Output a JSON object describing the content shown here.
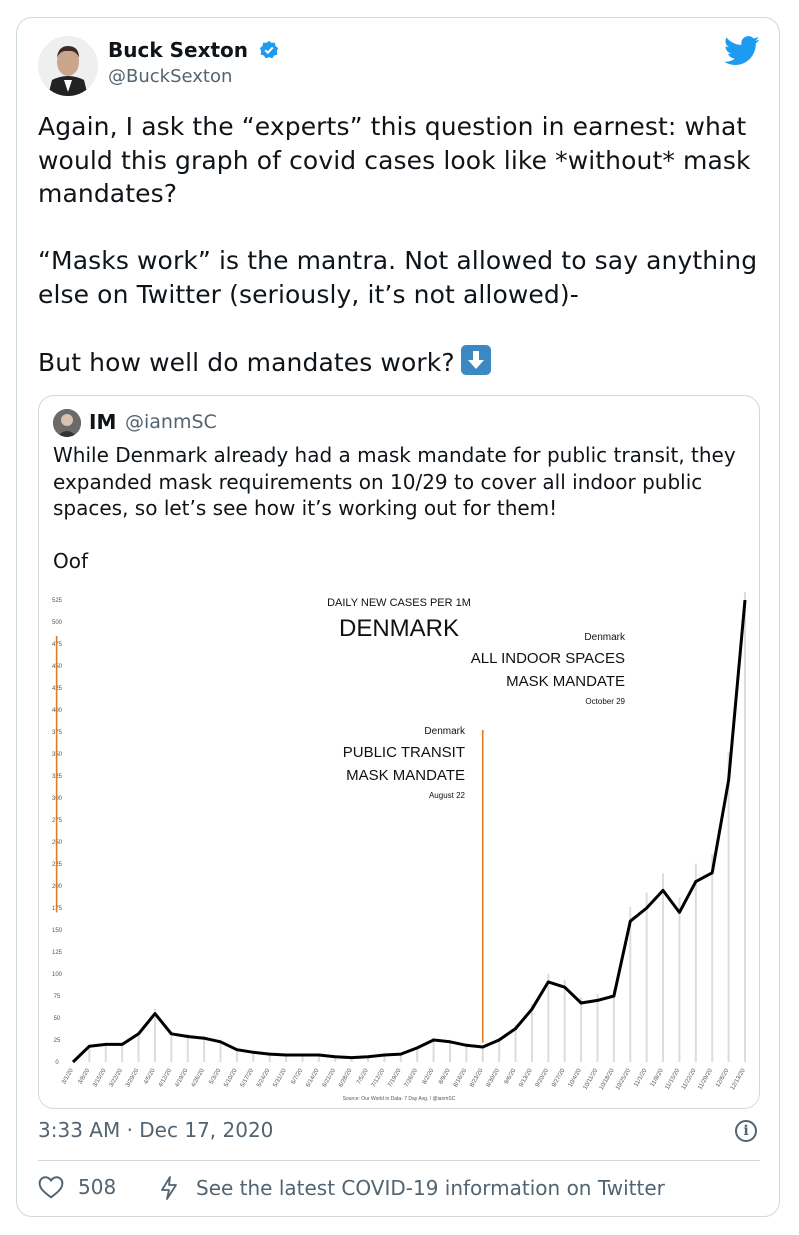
{
  "author": {
    "name": "Buck Sexton",
    "handle": "@BuckSexton",
    "verified_icon": "verified-badge-icon",
    "platform_icon": "twitter-bird-icon"
  },
  "tweet": {
    "text": "Again, I ask the “experts” this question in earnest: what would this graph of covid cases look like *without* mask mandates?\n\n“Masks work” is the mantra. Not allowed to say anything else on Twitter (seriously, it’s not allowed)-\n\nBut how well do mandates work?",
    "emoji": "down-arrow-emoji"
  },
  "quoted": {
    "name": "IM",
    "handle": "@ianmSC",
    "text": "While Denmark already had a mask mandate for public transit, they expanded mask requirements on 10/29 to cover all indoor public spaces, so let’s see how it’s working out for them!\n\nOof"
  },
  "chart_data": {
    "type": "line",
    "title": "DENMARK",
    "subtitle": "DAILY NEW CASES PER 1M",
    "source": "Source: Our World in Data- 7 Day Avg. / @ianmSC",
    "ylim": [
      0,
      525
    ],
    "yticks": [
      "0",
      "25",
      "50",
      "75",
      "100",
      "125",
      "150",
      "175",
      "200",
      "225",
      "250",
      "275",
      "300",
      "325",
      "350",
      "375",
      "400",
      "425",
      "450",
      "475",
      "500",
      "525"
    ],
    "categories": [
      "3/1/20",
      "3/8/20",
      "3/15/20",
      "3/22/20",
      "3/29/20",
      "4/5/20",
      "4/12/20",
      "4/19/20",
      "4/26/20",
      "5/3/20",
      "5/10/20",
      "5/17/20",
      "5/24/20",
      "5/31/20",
      "6/7/20",
      "6/14/20",
      "6/21/20",
      "6/28/20",
      "7/5/20",
      "7/12/20",
      "7/19/20",
      "7/26/20",
      "8/2/20",
      "8/9/20",
      "8/16/20",
      "8/23/20",
      "8/30/20",
      "9/6/20",
      "9/13/20",
      "9/20/20",
      "9/27/20",
      "10/4/20",
      "10/11/20",
      "10/18/20",
      "10/25/20",
      "11/1/20",
      "11/8/20",
      "11/15/20",
      "11/22/20",
      "11/29/20",
      "12/6/20",
      "12/13/20"
    ],
    "series": [
      {
        "values": [
          0,
          18,
          20,
          20,
          32,
          55,
          32,
          29,
          27,
          23,
          14,
          11,
          9,
          8,
          8,
          8,
          6,
          5,
          6,
          8,
          9,
          16,
          25,
          23,
          19,
          17,
          25,
          38,
          60,
          91,
          85,
          67,
          70,
          75,
          160,
          175,
          195,
          170,
          205,
          215,
          320,
          525
        ]
      }
    ],
    "annotations": [
      {
        "category": "8/23/20",
        "value": 22,
        "country": "Denmark",
        "line1": "PUBLIC TRANSIT",
        "line2": "MASK MANDATE",
        "date": "August 22"
      },
      {
        "category": "10/29/20",
        "value": 170,
        "country": "Denmark",
        "line1": "ALL INDOOR SPACES",
        "line2": "MASK MANDATE",
        "date": "October 29"
      }
    ],
    "colors": {
      "line": "#000000",
      "annotation": "#e07b22",
      "bars": "#dcdcdc"
    }
  },
  "footer": {
    "timestamp": "3:33 AM · Dec 17, 2020",
    "likes": "508",
    "covid_link": "See the latest COVID-19 information on Twitter"
  }
}
